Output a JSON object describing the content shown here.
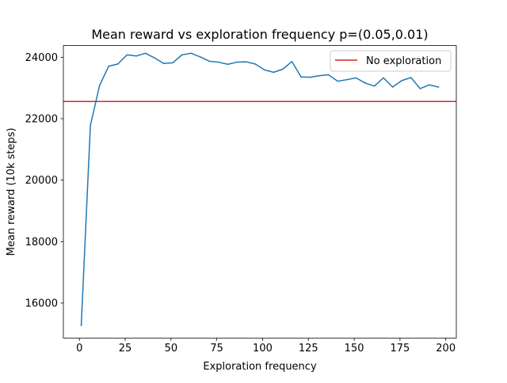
{
  "chart_data": {
    "type": "line",
    "title": "Mean reward vs exploration frequency p=(0.05,0.01)",
    "xlabel": "Exploration frequency",
    "ylabel": "Mean reward (10k steps)",
    "xlim": [
      -8.75,
      205.75
    ],
    "ylim": [
      14860,
      24380
    ],
    "xticks": [
      0,
      25,
      50,
      75,
      100,
      125,
      150,
      175,
      200
    ],
    "yticks": [
      16000,
      18000,
      20000,
      22000,
      24000
    ],
    "grid": false,
    "legend_position": "top-right",
    "series": [
      {
        "color": "#1f77b4",
        "x": [
          1,
          6,
          11,
          16,
          21,
          26,
          31,
          36,
          41,
          46,
          51,
          56,
          61,
          66,
          71,
          76,
          81,
          86,
          91,
          96,
          101,
          106,
          111,
          116,
          121,
          126,
          131,
          136,
          141,
          146,
          151,
          156,
          161,
          166,
          171,
          176,
          181,
          186,
          191,
          196
        ],
        "values": [
          15270,
          21780,
          23080,
          23710,
          23780,
          24080,
          24040,
          24130,
          23980,
          23800,
          23820,
          24080,
          24130,
          24010,
          23870,
          23840,
          23770,
          23840,
          23850,
          23780,
          23590,
          23510,
          23610,
          23860,
          23360,
          23350,
          23400,
          23430,
          23220,
          23270,
          23330,
          23160,
          23060,
          23330,
          23030,
          23240,
          23340,
          22980,
          23100,
          23030
        ]
      }
    ],
    "hlines": [
      {
        "name": "No exploration",
        "value": 22560,
        "color": "#d62728"
      }
    ]
  }
}
